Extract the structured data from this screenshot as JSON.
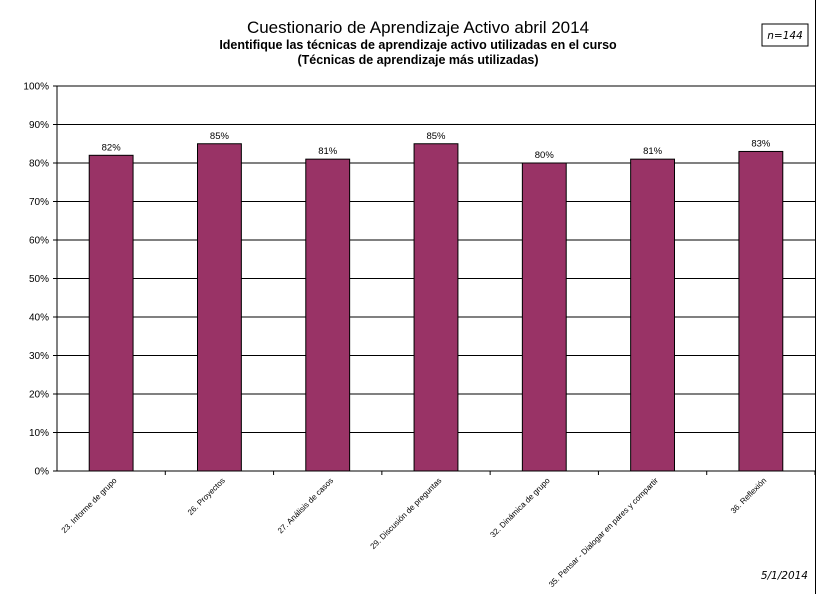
{
  "chart_data": {
    "type": "bar",
    "title": "Cuestionario de Aprendizaje Activo abril 2014",
    "subtitle_lines": [
      "Identifique las técnicas de aprendizaje activo utilizadas en el curso",
      "(Técnicas de aprendizaje más utilizadas)"
    ],
    "categories": [
      "23. Informe de grupo",
      "26. Proyectos",
      "27. Análisis de casos",
      "29. Discusión de preguntas",
      "32. Dinámica de grupo",
      "35. Pensar - Dialogar en pares y compartir",
      "36. Reflexión"
    ],
    "values": [
      82,
      85,
      81,
      85,
      80,
      81,
      83
    ],
    "data_labels": [
      "82%",
      "85%",
      "81%",
      "85%",
      "80%",
      "81%",
      "83%"
    ],
    "ylim": [
      0,
      100
    ],
    "yticks": [
      "0%",
      "10%",
      "20%",
      "30%",
      "40%",
      "50%",
      "60%",
      "70%",
      "80%",
      "90%",
      "100%"
    ],
    "grid": true,
    "bar_color": "#993366",
    "sample_note": "n=144",
    "date_note": "5/1/2014"
  }
}
